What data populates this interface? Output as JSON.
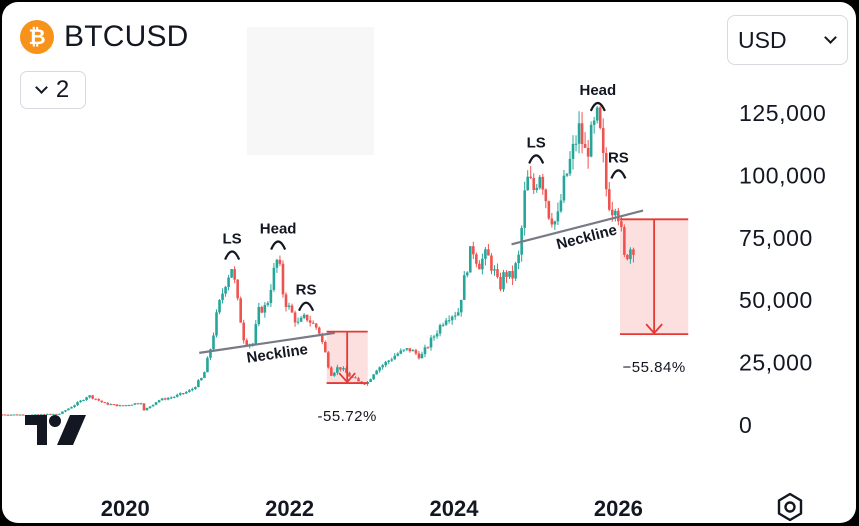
{
  "header": {
    "coin_icon": "bitcoin-icon",
    "coin_glyph": "₿",
    "symbol": "BTCUSD",
    "compare_count": "2",
    "currency": "USD"
  },
  "colors": {
    "up": "#26a69a",
    "down": "#ef5350",
    "neckline": "#787b86",
    "measure": "#e53935",
    "measure_fill": "rgba(239,83,80,0.18)",
    "text": "#131722"
  },
  "branding": {
    "logo": "tradingview-logo",
    "settings_icon": "gear-icon"
  },
  "chart_data": {
    "type": "candlestick",
    "title": "",
    "xlabel": "",
    "ylabel": "",
    "x_ticks": [
      "2020",
      "2022",
      "2024",
      "2026"
    ],
    "y_ticks": [
      "0",
      "25,000",
      "50,000",
      "75,000",
      "100,000",
      "125,000"
    ],
    "ylim": [
      0,
      130000
    ],
    "x_range": [
      2018.5,
      2027.2
    ],
    "grid": false,
    "series": [
      {
        "name": "",
        "points": [
          [
            2018.5,
            3800
          ],
          [
            2018.9,
            3700
          ],
          [
            2019.2,
            4100
          ],
          [
            2019.45,
            9000
          ],
          [
            2019.55,
            11500
          ],
          [
            2019.75,
            8200
          ],
          [
            2019.95,
            7200
          ],
          [
            2020.2,
            8700
          ],
          [
            2020.22,
            5200
          ],
          [
            2020.4,
            9500
          ],
          [
            2020.6,
            11000
          ],
          [
            2020.8,
            13500
          ],
          [
            2020.95,
            19000
          ],
          [
            2021.05,
            32000
          ],
          [
            2021.12,
            45000
          ],
          [
            2021.22,
            57000
          ],
          [
            2021.3,
            63500
          ],
          [
            2021.36,
            50000
          ],
          [
            2021.45,
            33000
          ],
          [
            2021.55,
            32000
          ],
          [
            2021.63,
            46000
          ],
          [
            2021.72,
            47000
          ],
          [
            2021.8,
            60000
          ],
          [
            2021.86,
            67000
          ],
          [
            2021.93,
            50000
          ],
          [
            2022.0,
            46000
          ],
          [
            2022.1,
            40000
          ],
          [
            2022.2,
            43000
          ],
          [
            2022.28,
            40000
          ],
          [
            2022.35,
            38000
          ],
          [
            2022.42,
            30000
          ],
          [
            2022.5,
            20000
          ],
          [
            2022.6,
            23000
          ],
          [
            2022.72,
            19500
          ],
          [
            2022.85,
            16500
          ],
          [
            2022.95,
            16800
          ],
          [
            2023.05,
            22000
          ],
          [
            2023.15,
            24000
          ],
          [
            2023.3,
            28000
          ],
          [
            2023.45,
            30000
          ],
          [
            2023.6,
            27000
          ],
          [
            2023.75,
            35000
          ],
          [
            2023.9,
            43000
          ],
          [
            2024.05,
            45000
          ],
          [
            2024.15,
            62000
          ],
          [
            2024.22,
            71000
          ],
          [
            2024.3,
            64000
          ],
          [
            2024.4,
            68000
          ],
          [
            2024.5,
            60000
          ],
          [
            2024.55,
            54000
          ],
          [
            2024.62,
            61000
          ],
          [
            2024.7,
            58000
          ],
          [
            2024.8,
            68000
          ],
          [
            2024.85,
            90000
          ],
          [
            2024.9,
            98000
          ],
          [
            2024.97,
            94000
          ],
          [
            2025.05,
            102000
          ],
          [
            2025.15,
            85000
          ],
          [
            2025.25,
            80000
          ],
          [
            2025.33,
            95000
          ],
          [
            2025.42,
            106000
          ],
          [
            2025.52,
            118000
          ],
          [
            2025.6,
            108000
          ],
          [
            2025.67,
            115000
          ],
          [
            2025.75,
            123000
          ],
          [
            2025.8,
            110000
          ],
          [
            2025.86,
            92000
          ],
          [
            2025.92,
            86000
          ],
          [
            2025.97,
            90000
          ],
          [
            2026.03,
            78000
          ],
          [
            2026.07,
            66000
          ],
          [
            2026.12,
            69000
          ],
          [
            2026.17,
            72000
          ],
          [
            2026.22,
            68000
          ]
        ]
      }
    ],
    "annotations": [
      {
        "label": "LS",
        "x": 2021.3,
        "y": 63500
      },
      {
        "label": "Head",
        "x": 2021.86,
        "y": 67500
      },
      {
        "label": "RS",
        "x": 2022.2,
        "y": 43000
      },
      {
        "label": "Neckline",
        "x1": 2020.9,
        "y1": 28500,
        "x2": 2022.55,
        "y2": 36500
      },
      {
        "label": "-55.72%",
        "x1": 2022.45,
        "y1": 37000,
        "x2": 2022.95,
        "y2": 16400
      },
      {
        "label": "LS",
        "x": 2025.0,
        "y": 102000
      },
      {
        "label": "Head",
        "x": 2025.75,
        "y": 123000
      },
      {
        "label": "RS",
        "x": 2026.0,
        "y": 96000
      },
      {
        "label": "Neckline",
        "x1": 2024.7,
        "y1": 72000,
        "x2": 2026.3,
        "y2": 85500
      },
      {
        "label": "−55.84%",
        "x1": 2026.02,
        "y1": 82000,
        "x2": 2026.85,
        "y2": 36000
      }
    ]
  }
}
